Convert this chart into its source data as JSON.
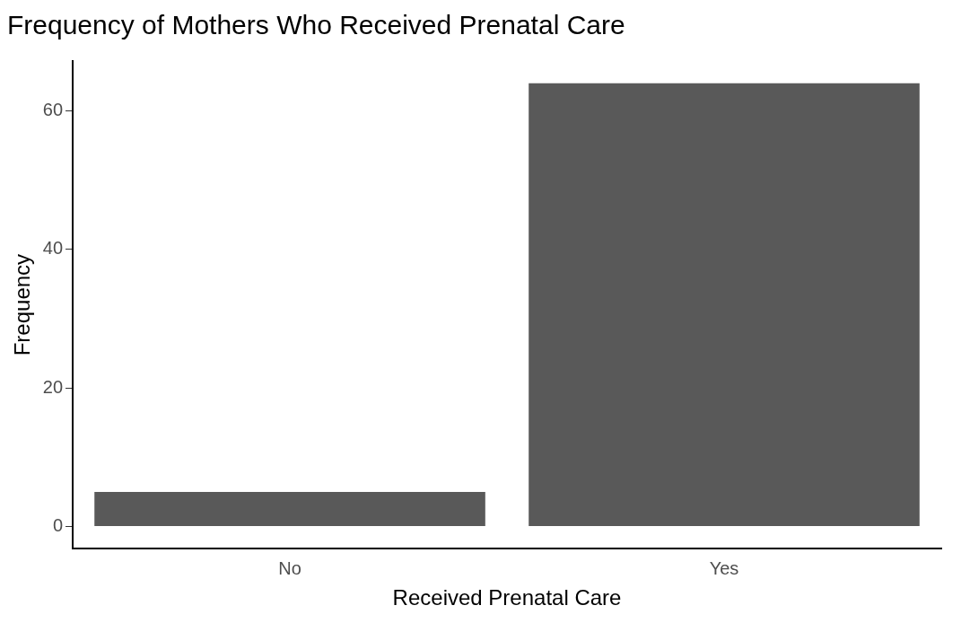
{
  "chart_data": {
    "type": "bar",
    "title": "Frequency of Mothers Who Received Prenatal Care",
    "xlabel": "Received Prenatal Care",
    "ylabel": "Frequency",
    "categories": [
      "No",
      "Yes"
    ],
    "values": [
      5,
      64
    ],
    "color": "#595959",
    "ylim": [
      -3.2,
      67.2
    ],
    "yticks": [
      0,
      20,
      40,
      60
    ],
    "grid": false,
    "legend": false
  }
}
